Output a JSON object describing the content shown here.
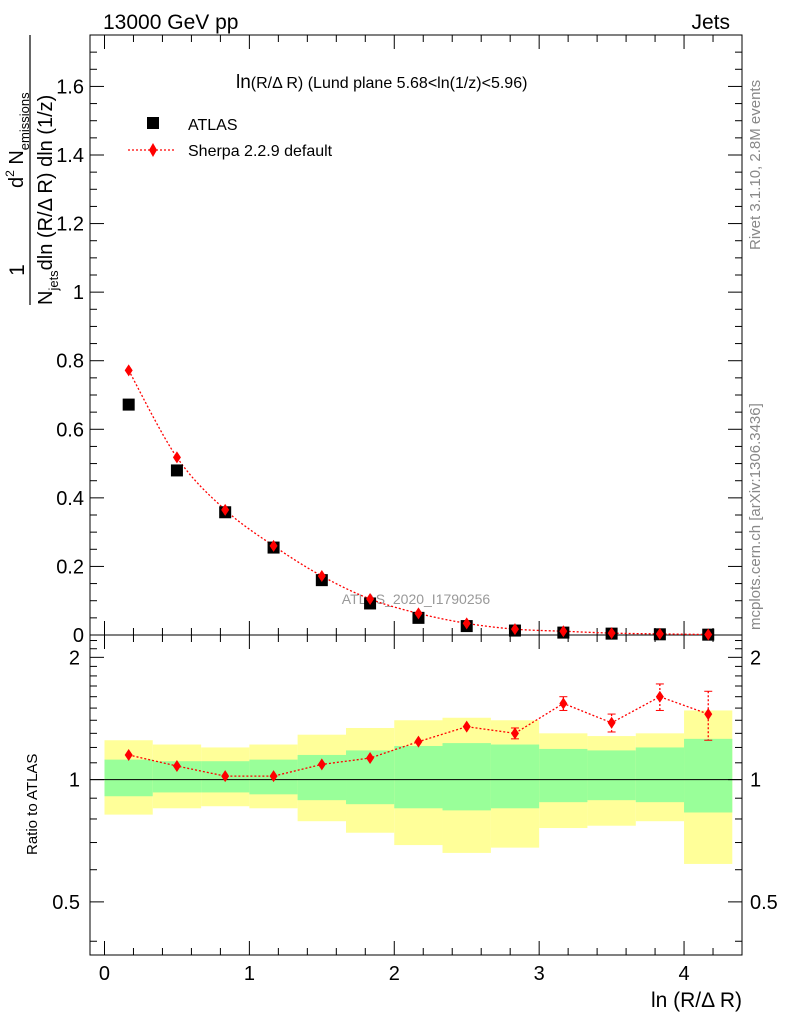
{
  "header": {
    "left": "13000 GeV pp",
    "right": "Jets"
  },
  "side_labels": {
    "rivet": "Rivet 3.1.10,  2.8M events",
    "mcplots": "mcplots.cern.ch [arXiv:1306.3436]"
  },
  "watermark": "ATLAS_2020_I1790256",
  "plot_title": {
    "prefix": "ln",
    "var": "(R/Δ R)",
    "rest": " (Lund plane 5.68<ln(1/z)<5.96)"
  },
  "ylabel_main": {
    "one": "1",
    "d2": "d",
    "sup2": "2",
    "N": " N",
    "sub_emissions": "emissions",
    "Nj": "N",
    "sub_jets": "jets",
    "den_rest": "dln (R/Δ R) dln (1/z)"
  },
  "ylabel_ratio": "Ratio to ATLAS",
  "xlabel": "ln (R/Δ R)",
  "legend": {
    "atlas": "ATLAS",
    "sherpa": "Sherpa 2.2.9 default"
  },
  "colors": {
    "data": "#000000",
    "mc": "#ff0000",
    "band_inner": "#99ff99",
    "band_outer": "#ffff99"
  },
  "chart_data": {
    "type": "scatter",
    "xlim": [
      -0.1,
      4.4
    ],
    "main_ylim": [
      0,
      1.75
    ],
    "main_yticks": [
      "0",
      "0.2",
      "0.4",
      "0.6",
      "0.8",
      "1",
      "1.2",
      "1.4",
      "1.6"
    ],
    "ratio_ylim": [
      0.37,
      2.27
    ],
    "ratio_ylog": true,
    "ratio_yticks": [
      "0.5",
      "1",
      "2"
    ],
    "xticks": [
      "0",
      "1",
      "2",
      "3",
      "4"
    ],
    "bin_edges": [
      0,
      0.333,
      0.667,
      1.0,
      1.333,
      1.667,
      2.0,
      2.333,
      2.667,
      3.0,
      3.333,
      3.667,
      4.0,
      4.333
    ],
    "x": [
      0.167,
      0.5,
      0.833,
      1.167,
      1.5,
      1.833,
      2.167,
      2.5,
      2.833,
      3.167,
      3.5,
      3.833,
      4.167
    ],
    "series": [
      {
        "name": "ATLAS",
        "values": [
          0.672,
          0.48,
          0.358,
          0.255,
          0.16,
          0.092,
          0.05,
          0.026,
          0.013,
          0.007,
          0.004,
          0.002,
          0.001
        ]
      },
      {
        "name": "Sherpa 2.2.9 default",
        "values": [
          0.772,
          0.518,
          0.365,
          0.26,
          0.172,
          0.105,
          0.063,
          0.034,
          0.017,
          0.011,
          0.0055,
          0.0032,
          0.0014
        ]
      }
    ],
    "ratio": [
      1.15,
      1.08,
      1.02,
      1.02,
      1.09,
      1.13,
      1.24,
      1.35,
      1.3,
      1.54,
      1.38,
      1.6,
      1.45
    ],
    "ratio_err": [
      0.02,
      0.015,
      0.01,
      0.01,
      0.015,
      0.02,
      0.025,
      0.03,
      0.04,
      0.06,
      0.07,
      0.12,
      0.2
    ],
    "band_inner": [
      [
        0.91,
        1.12
      ],
      [
        0.93,
        1.11
      ],
      [
        0.93,
        1.11
      ],
      [
        0.92,
        1.12
      ],
      [
        0.89,
        1.15
      ],
      [
        0.87,
        1.18
      ],
      [
        0.85,
        1.21
      ],
      [
        0.84,
        1.23
      ],
      [
        0.85,
        1.22
      ],
      [
        0.88,
        1.19
      ],
      [
        0.89,
        1.18
      ],
      [
        0.88,
        1.2
      ],
      [
        0.83,
        1.26
      ]
    ],
    "band_outer": [
      [
        0.82,
        1.25
      ],
      [
        0.85,
        1.22
      ],
      [
        0.86,
        1.2
      ],
      [
        0.85,
        1.22
      ],
      [
        0.79,
        1.29
      ],
      [
        0.74,
        1.34
      ],
      [
        0.69,
        1.4
      ],
      [
        0.66,
        1.42
      ],
      [
        0.68,
        1.4
      ],
      [
        0.76,
        1.3
      ],
      [
        0.77,
        1.28
      ],
      [
        0.79,
        1.3
      ],
      [
        0.62,
        1.48
      ]
    ]
  }
}
